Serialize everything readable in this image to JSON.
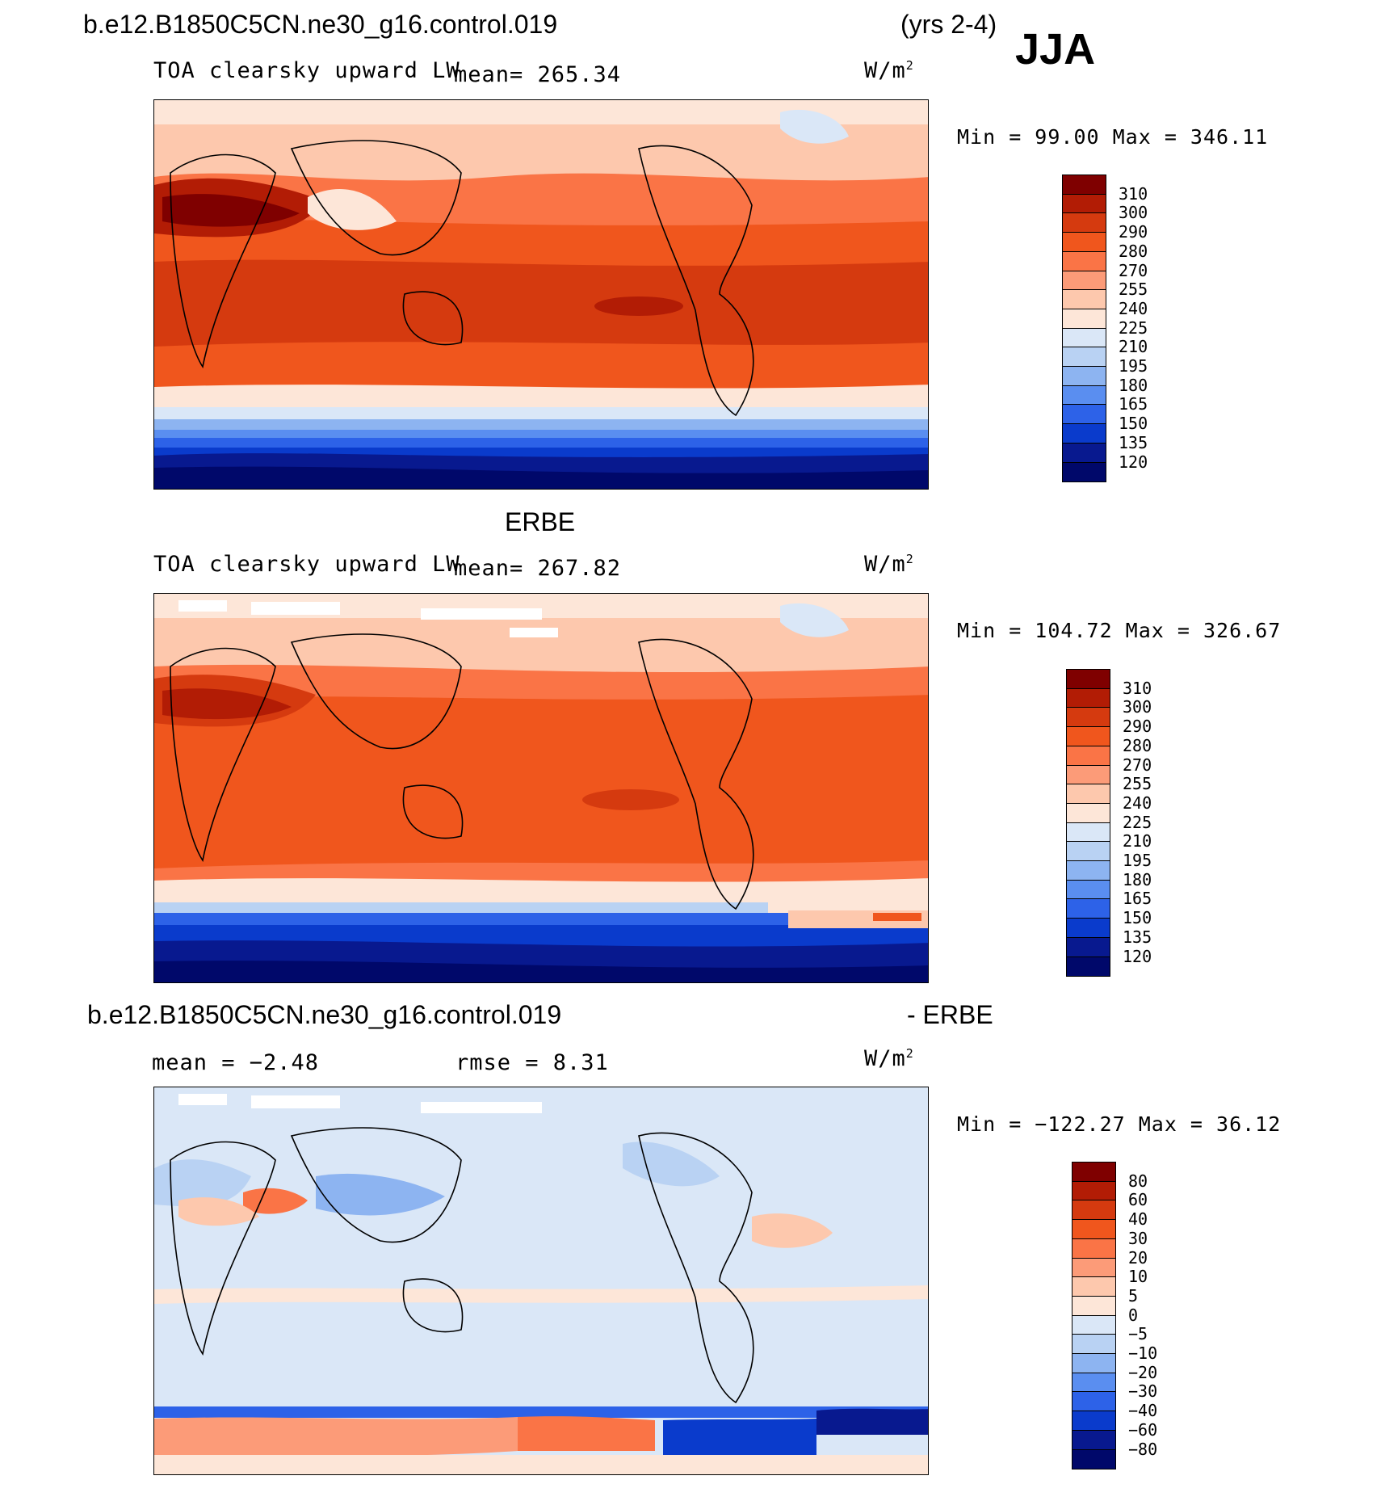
{
  "header": {
    "case_name": "b.e12.B1850C5CN.ne30_g16.control.019",
    "years": "(yrs 2-4)",
    "season": "JJA"
  },
  "panels": [
    {
      "top_title": "",
      "variable": "TOA clearsky upward LW",
      "stat_text": "mean= 265.34",
      "units": "W/m",
      "units_sup": "2",
      "minmax": "Min =   99.00 Max = 346.11",
      "colorbar": {
        "labels": [
          "310",
          "300",
          "290",
          "280",
          "270",
          "255",
          "240",
          "225",
          "210",
          "195",
          "180",
          "165",
          "150",
          "135",
          "120"
        ],
        "colors": [
          "#7f0000",
          "#b21c05",
          "#d53a0f",
          "#f0561d",
          "#fa7446",
          "#fc9b78",
          "#fdc8ad",
          "#fde6d8",
          "#dae7f7",
          "#b9d2f3",
          "#8db4f1",
          "#5a8ef0",
          "#2d62e8",
          "#0a3bcc",
          "#08198f",
          "#00086a"
        ]
      }
    },
    {
      "top_title": "ERBE",
      "variable": "TOA clearsky upward LW",
      "stat_text": "mean= 267.82",
      "units": "W/m",
      "units_sup": "2",
      "minmax": "Min = 104.72 Max = 326.67",
      "colorbar": {
        "labels": [
          "310",
          "300",
          "290",
          "280",
          "270",
          "255",
          "240",
          "225",
          "210",
          "195",
          "180",
          "165",
          "150",
          "135",
          "120"
        ],
        "colors": [
          "#7f0000",
          "#b21c05",
          "#d53a0f",
          "#f0561d",
          "#fa7446",
          "#fc9b78",
          "#fdc8ad",
          "#fde6d8",
          "#dae7f7",
          "#b9d2f3",
          "#8db4f1",
          "#5a8ef0",
          "#2d62e8",
          "#0a3bcc",
          "#08198f",
          "#00086a"
        ]
      }
    },
    {
      "top_title_left": "b.e12.B1850C5CN.ne30_g16.control.019",
      "top_title_right": "- ERBE",
      "mean_text": "mean =   −2.48",
      "rmse_text": "rmse =    8.31",
      "units": "W/m",
      "units_sup": "2",
      "minmax": "Min = −122.27 Max =  36.12",
      "colorbar": {
        "labels": [
          "80",
          "60",
          "40",
          "30",
          "20",
          "10",
          "5",
          "0",
          "−5",
          "−10",
          "−20",
          "−30",
          "−40",
          "−60",
          "−80"
        ],
        "colors": [
          "#7f0000",
          "#b21c05",
          "#d53a0f",
          "#f0561d",
          "#fa7446",
          "#fc9b78",
          "#fdc8ad",
          "#fde6d8",
          "#dae7f7",
          "#b9d2f3",
          "#8db4f1",
          "#5a8ef0",
          "#2d62e8",
          "#0a3bcc",
          "#08198f",
          "#00086a"
        ]
      }
    }
  ]
}
